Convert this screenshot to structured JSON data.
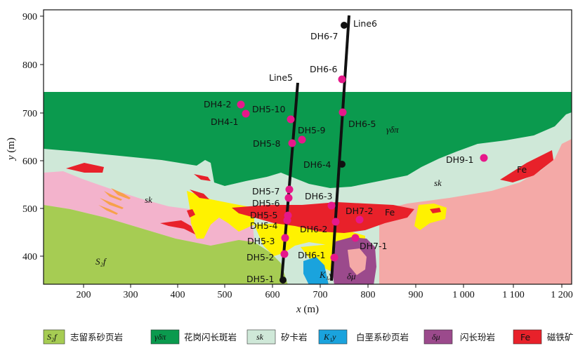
{
  "axes": {
    "x_title_var": "x",
    "x_title_unit": " (m)",
    "y_title_var": "y",
    "y_title_unit": " (m)",
    "x_ticks": [
      "200",
      "300",
      "400",
      "500",
      "600",
      "700",
      "800",
      "900",
      "1 000",
      "1 100",
      "1 200"
    ],
    "y_ticks": [
      "400",
      "500",
      "600",
      "700",
      "800",
      "900"
    ]
  },
  "units": {
    "silurian": "S₂f",
    "granite": "γδπ",
    "skarn": "sk",
    "cretaceous": "K₁y",
    "diorite": "δμ",
    "iron": "Fe"
  },
  "lines": {
    "line5": "Line5",
    "line6": "Line6"
  },
  "holes": {
    "dh4_2": "DH4-2",
    "dh4_1": "DH4-1",
    "dh5_10": "DH5-10",
    "dh5_9": "DH5-9",
    "dh5_8": "DH5-8",
    "dh5_7": "DH5-7",
    "dh5_6": "DH5-6",
    "dh5_5": "DH5-5",
    "dh5_4": "DH5-4",
    "dh5_3": "DH5-3",
    "dh5_2": "DH5-2",
    "dh5_1": "DH5-1",
    "dh6_7": "DH6-7",
    "dh6_6": "DH6-6",
    "dh6_5": "DH6-5",
    "dh6_4": "DH6-4",
    "dh6_3": "DH6-3",
    "dh6_2": "DH6-2",
    "dh6_1": "DH6-1",
    "dh7_2": "DH7-2",
    "dh7_1": "DH7-1",
    "dh9_1": "DH9-1"
  },
  "legend": {
    "silurian_text": "志留系砂页岩",
    "granite_text": "花岗闪长斑岩",
    "skarn_text": "矽卡岩",
    "cretaceous_text": "白垩系砂页岩",
    "diorite_text": "闪长玢岩",
    "iron_text": "磁铁矿"
  },
  "colors": {
    "granite": "#0b9a4e",
    "skarn": "#cfe8d8",
    "silurian": "#a6cc53",
    "pink": "#f3b3cc",
    "salmon": "#f4a9a7",
    "yellow": "#fff200",
    "iron": "#e8212a",
    "cretaceous": "#1aa3dd",
    "diorite": "#9b4a8c",
    "sample": "#e6188a",
    "hole": "#111111"
  }
}
